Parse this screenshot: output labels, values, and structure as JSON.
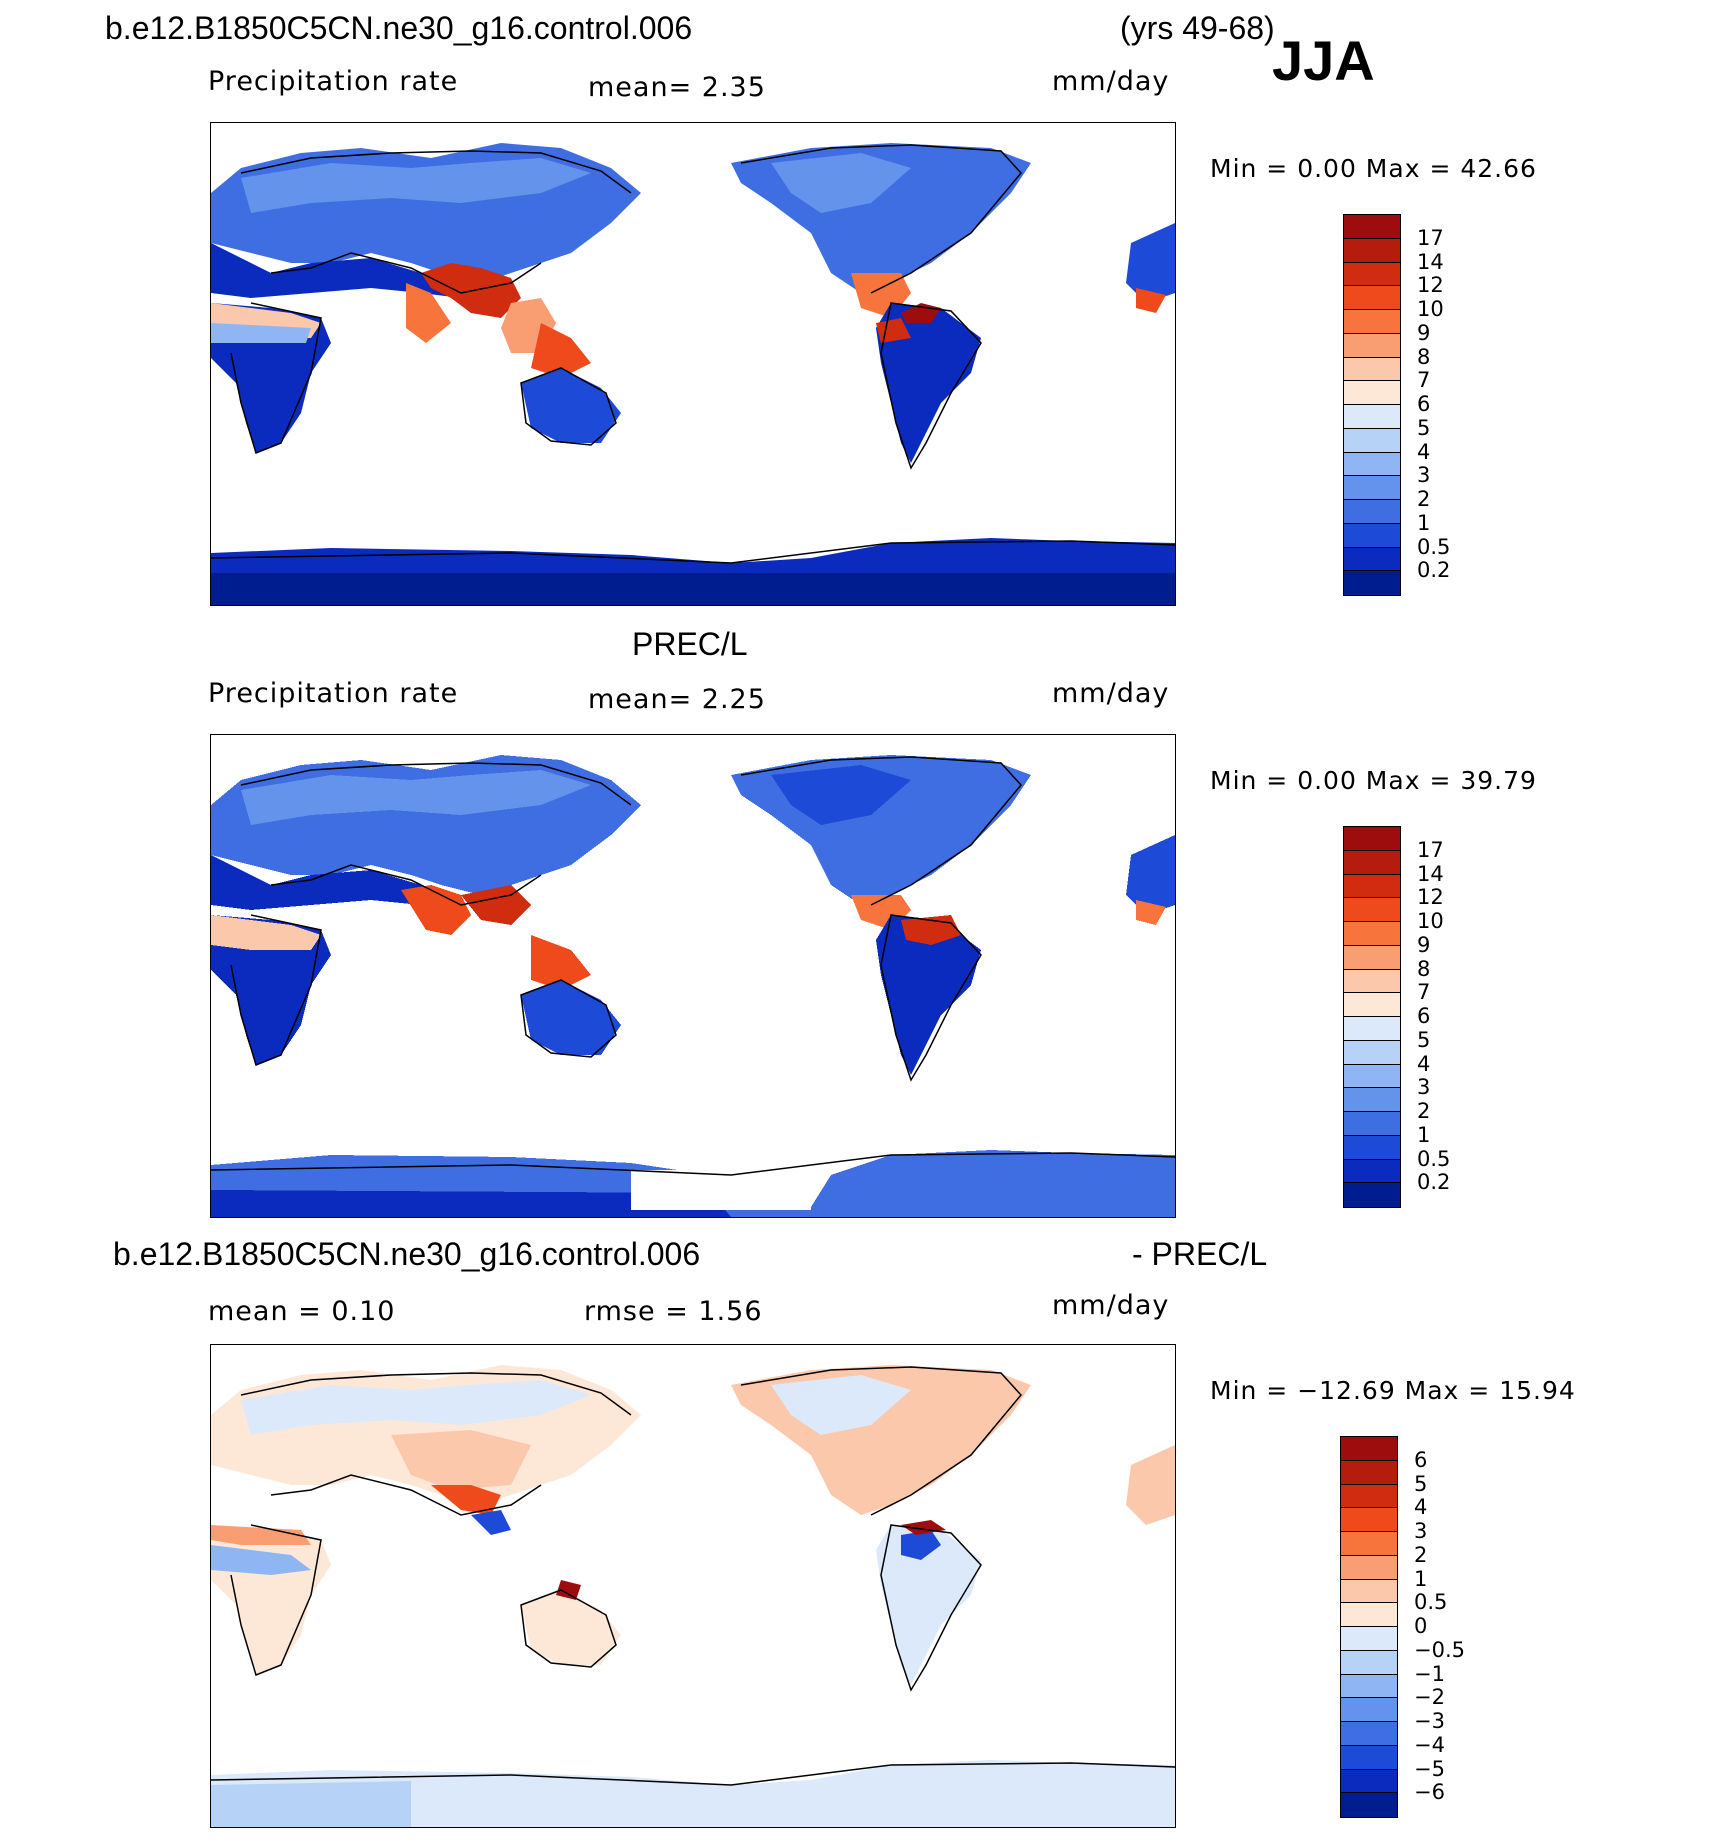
{
  "header": {
    "case_name": "b.e12.B1850C5CN.ne30_g16.control.006",
    "years": "(yrs 49-68)",
    "season": "JJA"
  },
  "panels": [
    {
      "id": "model",
      "title": "",
      "variable": "Precipitation rate",
      "stat1": "mean=    2.35",
      "stat2": "",
      "units": "mm/day",
      "minmax": "Min  =     0.00  Max  =    42.66",
      "legend": {
        "labels": [
          "17",
          "14",
          "12",
          "10",
          "9",
          "8",
          "7",
          "6",
          "5",
          "4",
          "3",
          "2",
          "1",
          "0.5",
          "0.2"
        ],
        "colors": [
          "#9e0d0d",
          "#b51c0e",
          "#d02c10",
          "#ef4a1b",
          "#f7743d",
          "#f99e72",
          "#fcc8ac",
          "#fde8d8",
          "#dbe9fb",
          "#b7d2f7",
          "#8fb5f2",
          "#6493ec",
          "#3f6ee3",
          "#1d4ad6",
          "#0a2bbd",
          "#001d8f"
        ]
      }
    },
    {
      "id": "obs",
      "title": "PREC/L",
      "variable": "Precipitation rate",
      "stat1": "mean=    2.25",
      "stat2": "",
      "units": "mm/day",
      "minmax": "Min  =     0.00  Max  =    39.79",
      "legend": {
        "labels": [
          "17",
          "14",
          "12",
          "10",
          "9",
          "8",
          "7",
          "6",
          "5",
          "4",
          "3",
          "2",
          "1",
          "0.5",
          "0.2"
        ],
        "colors": [
          "#9e0d0d",
          "#b51c0e",
          "#d02c10",
          "#ef4a1b",
          "#f7743d",
          "#f99e72",
          "#fcc8ac",
          "#fde8d8",
          "#dbe9fb",
          "#b7d2f7",
          "#8fb5f2",
          "#6493ec",
          "#3f6ee3",
          "#1d4ad6",
          "#0a2bbd",
          "#001d8f"
        ]
      }
    },
    {
      "id": "diff",
      "title": "b.e12.B1850C5CN.ne30_g16.control.006",
      "title_right": "- PREC/L",
      "variable": "",
      "stat1": "mean  =     0.10",
      "stat2": "rmse  =     1.56",
      "units": "mm/day",
      "minmax": "Min  = −12.69  Max  =    15.94",
      "legend": {
        "labels": [
          "6",
          "5",
          "4",
          "3",
          "2",
          "1",
          "0.5",
          "0",
          "−0.5",
          "−1",
          "−2",
          "−3",
          "−4",
          "−5",
          "−6"
        ],
        "colors": [
          "#9e0d0d",
          "#b51c0e",
          "#d02c10",
          "#ef4a1b",
          "#f7743d",
          "#f99e72",
          "#fcc8ac",
          "#fde8d8",
          "#dbe9fb",
          "#b7d2f7",
          "#8fb5f2",
          "#6493ec",
          "#3f6ee3",
          "#1d4ad6",
          "#0a2bbd",
          "#001d8f"
        ]
      }
    }
  ]
}
